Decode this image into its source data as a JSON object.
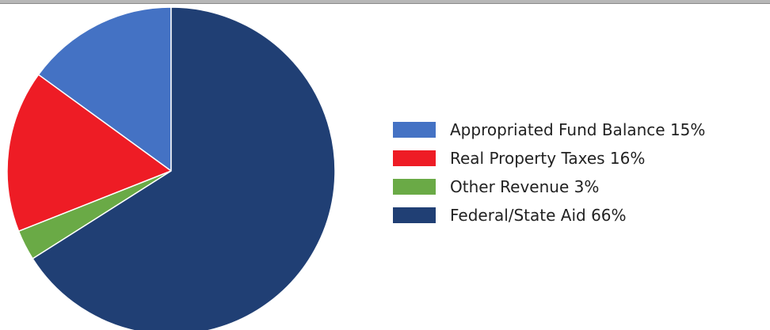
{
  "chart_data": {
    "type": "pie",
    "title": "",
    "start_angle_deg": 0,
    "direction": "counterclockwise",
    "slices": [
      {
        "label": "Appropriated Fund Balance 15%",
        "value": 15,
        "color": "#4472c4"
      },
      {
        "label": "Real Property Taxes 16%",
        "value": 16,
        "color": "#ee1c25"
      },
      {
        "label": "Other Revenue 3%",
        "value": 3,
        "color": "#6aaa46"
      },
      {
        "label": "Federal/State Aid 66%",
        "value": 66,
        "color": "#203f74"
      }
    ],
    "legend_position": "right"
  }
}
